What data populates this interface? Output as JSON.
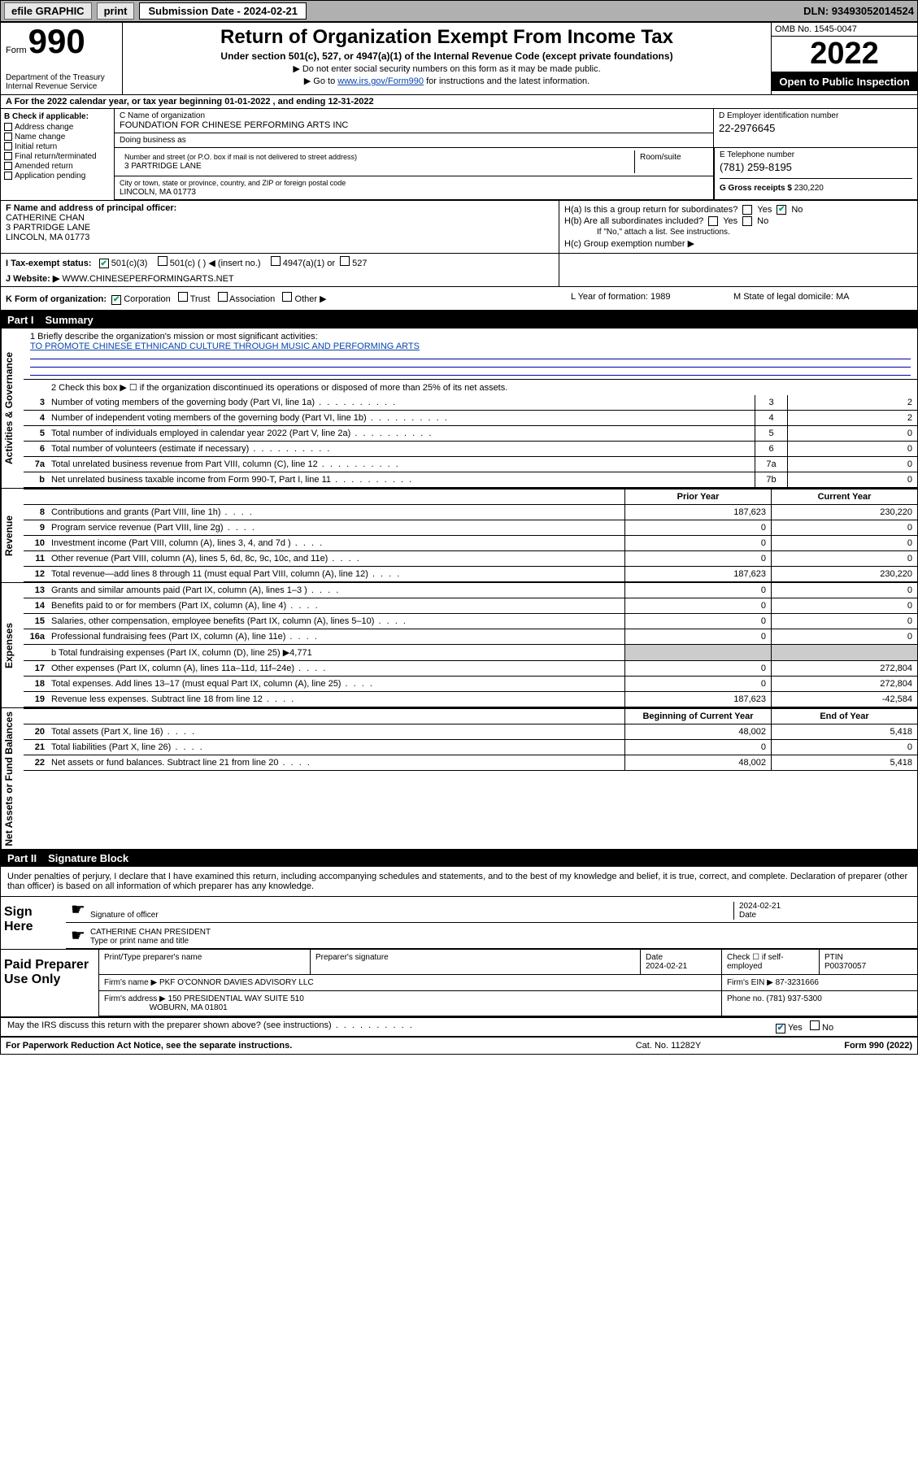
{
  "topbar": {
    "efile": "efile GRAPHIC",
    "print": "print",
    "sub_label": "Submission Date - 2024-02-21",
    "dln": "DLN: 93493052014524"
  },
  "header": {
    "form_word": "Form",
    "form_num": "990",
    "left_dept": "Department of the Treasury Internal Revenue Service",
    "title": "Return of Organization Exempt From Income Tax",
    "sub": "Under section 501(c), 527, or 4947(a)(1) of the Internal Revenue Code (except private foundations)",
    "note1": "▶ Do not enter social security numbers on this form as it may be made public.",
    "note2_pre": "▶ Go to ",
    "note2_link": "www.irs.gov/Form990",
    "note2_post": " for instructions and the latest information.",
    "omb": "OMB No. 1545-0047",
    "year": "2022",
    "open": "Open to Public Inspection"
  },
  "row_a": "A For the 2022 calendar year, or tax year beginning 01-01-2022    , and ending 12-31-2022",
  "col_b": {
    "header": "B Check if applicable:",
    "items": [
      "Address change",
      "Name change",
      "Initial return",
      "Final return/terminated",
      "Amended return",
      "Application pending"
    ]
  },
  "col_c": {
    "name_lbl": "C Name of organization",
    "name": "FOUNDATION FOR CHINESE PERFORMING ARTS INC",
    "dba_lbl": "Doing business as",
    "addr_lbl": "Number and street (or P.O. box if mail is not delivered to street address)",
    "room_lbl": "Room/suite",
    "addr": "3 PARTRIDGE LANE",
    "city_lbl": "City or town, state or province, country, and ZIP or foreign postal code",
    "city": "LINCOLN, MA  01773"
  },
  "col_d": {
    "lbl": "D Employer identification number",
    "val": "22-2976645"
  },
  "col_e": {
    "lbl": "E Telephone number",
    "val": "(781) 259-8195"
  },
  "col_g": {
    "lbl": "G Gross receipts $",
    "val": "230,220"
  },
  "row_f": {
    "lbl": "F Name and address of principal officer:",
    "name": "CATHERINE CHAN",
    "addr1": "3 PARTRIDGE LANE",
    "addr2": "LINCOLN, MA  01773"
  },
  "row_h": {
    "ha": "H(a)  Is this a group return for subordinates?",
    "hb": "H(b)  Are all subordinates included?",
    "hb_note": "If \"No,\" attach a list. See instructions.",
    "hc": "H(c)  Group exemption number ▶",
    "yes": "Yes",
    "no": "No"
  },
  "row_i": {
    "lbl": "I    Tax-exempt status:",
    "o1": "501(c)(3)",
    "o2": "501(c) (   ) ◀ (insert no.)",
    "o3": "4947(a)(1) or",
    "o4": "527"
  },
  "row_j": {
    "lbl": "J   Website: ▶",
    "val": "WWW.CHINESEPERFORMINGARTS.NET"
  },
  "row_k": {
    "lbl": "K Form of organization:",
    "o1": "Corporation",
    "o2": "Trust",
    "o3": "Association",
    "o4": "Other ▶",
    "l": "L Year of formation: 1989",
    "m": "M State of legal domicile: MA"
  },
  "part1": {
    "pt": "Part I",
    "title": "Summary"
  },
  "mission": {
    "lbl": "1   Briefly describe the organization's mission or most significant activities:",
    "text": "TO PROMOTE CHINESE ETHNICAND CULTURE THROUGH MUSIC AND PERFORMING ARTS"
  },
  "line2": "2   Check this box ▶ ☐  if the organization discontinued its operations or disposed of more than 25% of its net assets.",
  "gov_rows": [
    {
      "n": "3",
      "d": "Number of voting members of the governing body (Part VI, line 1a)",
      "box": "3",
      "v": "2"
    },
    {
      "n": "4",
      "d": "Number of independent voting members of the governing body (Part VI, line 1b)",
      "box": "4",
      "v": "2"
    },
    {
      "n": "5",
      "d": "Total number of individuals employed in calendar year 2022 (Part V, line 2a)",
      "box": "5",
      "v": "0"
    },
    {
      "n": "6",
      "d": "Total number of volunteers (estimate if necessary)",
      "box": "6",
      "v": "0"
    },
    {
      "n": "7a",
      "d": "Total unrelated business revenue from Part VIII, column (C), line 12",
      "box": "7a",
      "v": "0"
    },
    {
      "n": "b",
      "d": "Net unrelated business taxable income from Form 990-T, Part I, line 11",
      "box": "7b",
      "v": "0"
    }
  ],
  "twocol": {
    "c1": "Prior Year",
    "c2": "Current Year"
  },
  "rev_rows": [
    {
      "n": "8",
      "d": "Contributions and grants (Part VIII, line 1h)",
      "v1": "187,623",
      "v2": "230,220"
    },
    {
      "n": "9",
      "d": "Program service revenue (Part VIII, line 2g)",
      "v1": "0",
      "v2": "0"
    },
    {
      "n": "10",
      "d": "Investment income (Part VIII, column (A), lines 3, 4, and 7d )",
      "v1": "0",
      "v2": "0"
    },
    {
      "n": "11",
      "d": "Other revenue (Part VIII, column (A), lines 5, 6d, 8c, 9c, 10c, and 11e)",
      "v1": "0",
      "v2": "0"
    },
    {
      "n": "12",
      "d": "Total revenue—add lines 8 through 11 (must equal Part VIII, column (A), line 12)",
      "v1": "187,623",
      "v2": "230,220"
    }
  ],
  "exp_rows": [
    {
      "n": "13",
      "d": "Grants and similar amounts paid (Part IX, column (A), lines 1–3 )",
      "v1": "0",
      "v2": "0"
    },
    {
      "n": "14",
      "d": "Benefits paid to or for members (Part IX, column (A), line 4)",
      "v1": "0",
      "v2": "0"
    },
    {
      "n": "15",
      "d": "Salaries, other compensation, employee benefits (Part IX, column (A), lines 5–10)",
      "v1": "0",
      "v2": "0"
    },
    {
      "n": "16a",
      "d": "Professional fundraising fees (Part IX, column (A), line 11e)",
      "v1": "0",
      "v2": "0"
    }
  ],
  "line16b": "b   Total fundraising expenses (Part IX, column (D), line 25) ▶4,771",
  "exp_rows2": [
    {
      "n": "17",
      "d": "Other expenses (Part IX, column (A), lines 11a–11d, 11f–24e)",
      "v1": "0",
      "v2": "272,804"
    },
    {
      "n": "18",
      "d": "Total expenses. Add lines 13–17 (must equal Part IX, column (A), line 25)",
      "v1": "0",
      "v2": "272,804"
    },
    {
      "n": "19",
      "d": "Revenue less expenses. Subtract line 18 from line 12",
      "v1": "187,623",
      "v2": "-42,584"
    }
  ],
  "bal_head": {
    "c1": "Beginning of Current Year",
    "c2": "End of Year"
  },
  "bal_rows": [
    {
      "n": "20",
      "d": "Total assets (Part X, line 16)",
      "v1": "48,002",
      "v2": "5,418"
    },
    {
      "n": "21",
      "d": "Total liabilities (Part X, line 26)",
      "v1": "0",
      "v2": "0"
    },
    {
      "n": "22",
      "d": "Net assets or fund balances. Subtract line 21 from line 20",
      "v1": "48,002",
      "v2": "5,418"
    }
  ],
  "part2": {
    "pt": "Part II",
    "title": "Signature Block"
  },
  "sig_decl": "Under penalties of perjury, I declare that I have examined this return, including accompanying schedules and statements, and to the best of my knowledge and belief, it is true, correct, and complete. Declaration of preparer (other than officer) is based on all information of which preparer has any knowledge.",
  "sign_here": "Sign Here",
  "sig_off": "Signature of officer",
  "sig_date_lbl": "Date",
  "sig_date": "2024-02-21",
  "sig_name": "CATHERINE CHAN  PRESIDENT",
  "sig_name_lbl": "Type or print name and title",
  "paid": {
    "title": "Paid Preparer Use Only",
    "h1": "Print/Type preparer's name",
    "h2": "Preparer's signature",
    "h3": "Date",
    "h3v": "2024-02-21",
    "h4a": "Check ☐ if self-employed",
    "h5": "PTIN",
    "h5v": "P00370057",
    "firm_lbl": "Firm's name    ▶",
    "firm": "PKF O'CONNOR DAVIES ADVISORY LLC",
    "ein_lbl": "Firm's EIN ▶",
    "ein": "87-3231666",
    "addr_lbl": "Firm's address ▶",
    "addr1": "150 PRESIDENTIAL WAY SUITE 510",
    "addr2": "WOBURN, MA  01801",
    "ph_lbl": "Phone no.",
    "ph": "(781) 937-5300"
  },
  "may_discuss": "May the IRS discuss this return with the preparer shown above? (see instructions)",
  "footer": {
    "f1": "For Paperwork Reduction Act Notice, see the separate instructions.",
    "f2": "Cat. No. 11282Y",
    "f3": "Form 990 (2022)"
  },
  "sidebar": {
    "gov": "Activities & Governance",
    "rev": "Revenue",
    "exp": "Expenses",
    "bal": "Net Assets or Fund Balances"
  }
}
